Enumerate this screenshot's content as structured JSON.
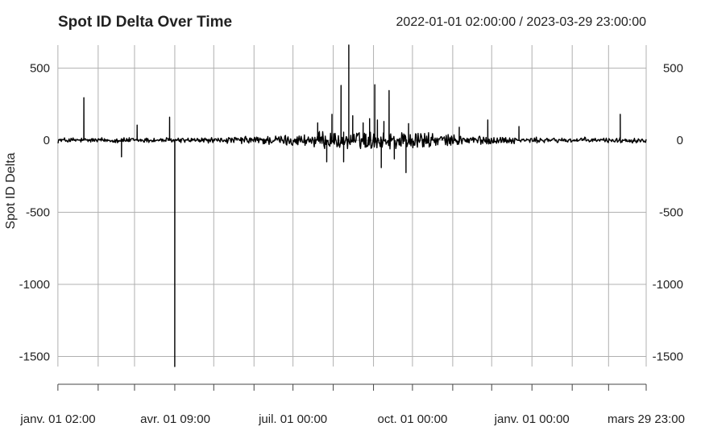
{
  "chart_data": {
    "type": "line",
    "title": "Spot ID Delta Over Time",
    "date_range_label": "2022-01-01 02:00:00 / 2023-03-29 23:00:00",
    "xlabel": "",
    "ylabel": "Spot ID Delta",
    "x_range": [
      "2022-01-01 02:00",
      "2023-03-29 23:00"
    ],
    "ylim": [
      -1570,
      660
    ],
    "y_ticks": [
      500,
      0,
      -500,
      -1000,
      -1500
    ],
    "y_tick_labels": [
      "500",
      "0",
      "-500",
      "-1000",
      "-1500"
    ],
    "x_tick_labels": [
      {
        "date": "2022-01-01 02:00",
        "label": "janv. 01 02:00"
      },
      {
        "date": "2022-04-01 09:00",
        "label": "avr. 01 09:00"
      },
      {
        "date": "2022-07-01 00:00",
        "label": "juil. 01 00:00"
      },
      {
        "date": "2022-10-01 00:00",
        "label": "oct. 01 00:00"
      },
      {
        "date": "2023-01-01 00:00",
        "label": "janv. 01 00:00"
      },
      {
        "date": "2023-03-29 23:00",
        "label": "mars 29 23:00"
      }
    ],
    "x_gridlines": [
      "2022-01-01",
      "2022-02-01",
      "2022-03-01",
      "2022-04-01",
      "2022-05-01",
      "2022-06-01",
      "2022-07-01",
      "2022-08-01",
      "2022-09-01",
      "2022-10-01",
      "2022-11-01",
      "2022-12-01",
      "2023-01-01",
      "2023-02-01",
      "2023-03-01"
    ],
    "grid": true,
    "legend": "none",
    "line_color": "#000000",
    "grid_color": "#b0b0b0",
    "series": [
      {
        "spikes": [
          {
            "date": "2022-01-21",
            "value": 295
          },
          {
            "date": "2022-02-19",
            "value": -115
          },
          {
            "date": "2022-03-03",
            "value": 105
          },
          {
            "date": "2022-03-28",
            "value": 160
          },
          {
            "date": "2022-04-01",
            "value": -1570
          },
          {
            "date": "2022-07-20",
            "value": 120
          },
          {
            "date": "2022-07-27",
            "value": -150
          },
          {
            "date": "2022-07-31",
            "value": 180
          },
          {
            "date": "2022-08-07",
            "value": 380
          },
          {
            "date": "2022-08-09",
            "value": -150
          },
          {
            "date": "2022-08-13",
            "value": 660
          },
          {
            "date": "2022-08-16",
            "value": 170
          },
          {
            "date": "2022-08-24",
            "value": 120
          },
          {
            "date": "2022-08-29",
            "value": 150
          },
          {
            "date": "2022-09-02",
            "value": 385
          },
          {
            "date": "2022-09-04",
            "value": 140
          },
          {
            "date": "2022-09-07",
            "value": -190
          },
          {
            "date": "2022-09-09",
            "value": 130
          },
          {
            "date": "2022-09-13",
            "value": 345
          },
          {
            "date": "2022-09-17",
            "value": -130
          },
          {
            "date": "2022-09-26",
            "value": -225
          },
          {
            "date": "2022-09-28",
            "value": 115
          },
          {
            "date": "2022-11-06",
            "value": 90
          },
          {
            "date": "2022-11-28",
            "value": 140
          },
          {
            "date": "2022-12-22",
            "value": 95
          },
          {
            "date": "2023-03-10",
            "value": 180
          }
        ]
      }
    ]
  }
}
